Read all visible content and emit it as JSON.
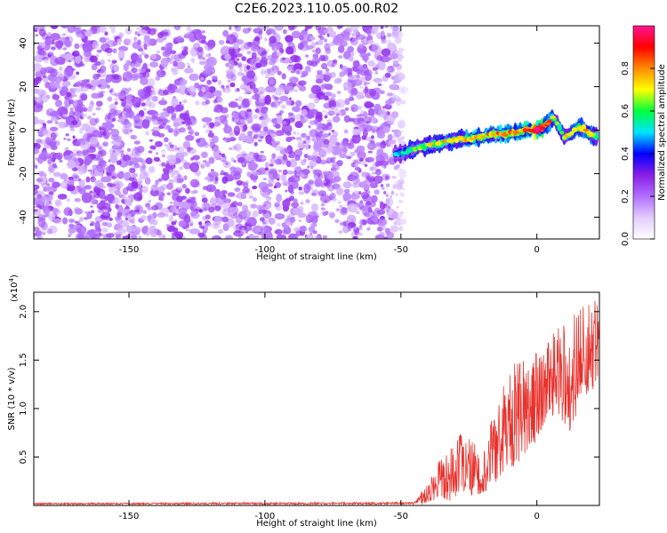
{
  "figure_title": "C2E6.2023.110.05.00.R02",
  "colors": {
    "snr_line": "#e8322d",
    "axis": "#000000",
    "colormap": [
      "#ffffff",
      "#e3ccff",
      "#b070ff",
      "#8a1de6",
      "#0000ff",
      "#00e5ff",
      "#00ff3c",
      "#ffff00",
      "#ff8c00",
      "#ff0000",
      "#ff1493"
    ]
  },
  "chart_data": [
    {
      "id": "spectrogram",
      "type": "heatmap",
      "title": "",
      "xlabel": "Height of straight line (km)",
      "ylabel": "Frequency (Hz)",
      "xlim": [
        -185,
        23
      ],
      "ylim": [
        -50,
        48
      ],
      "xticks": [
        -150,
        -100,
        -50,
        0
      ],
      "xtick_labels": [
        "-150",
        "-100",
        "-50",
        "0"
      ],
      "yticks": [
        -40,
        -20,
        0,
        20,
        40
      ],
      "ytick_labels": [
        "-40",
        "-20",
        "0",
        "20",
        "40"
      ],
      "colorbar": {
        "label": "Normalized spectral amplitude",
        "range": [
          0,
          1
        ],
        "ticks": [
          0.0,
          0.2,
          0.4,
          0.6,
          0.8
        ],
        "tick_labels": [
          "0.0",
          "0.2",
          "0.4",
          "0.6",
          "0.8"
        ]
      },
      "noise_region_x": [
        -185,
        -49
      ],
      "noise_level": 0.15,
      "signal_ridge": {
        "x": [
          -52,
          -48,
          -44,
          -40,
          -36,
          -32,
          -28,
          -24,
          -20,
          -16,
          -12,
          -8,
          -4,
          0,
          2,
          4,
          6,
          8,
          10,
          12,
          14,
          16,
          18,
          20,
          22
        ],
        "y": [
          -11,
          -10,
          -8,
          -7,
          -6,
          -5,
          -4,
          -4,
          -3,
          -2,
          -2,
          -1,
          0,
          0,
          1,
          3,
          6,
          2,
          -3,
          -2,
          0,
          1,
          0,
          -2,
          -3
        ],
        "peak_amplitude": [
          0.4,
          0.5,
          0.55,
          0.55,
          0.6,
          0.6,
          0.6,
          0.65,
          0.65,
          0.65,
          0.7,
          0.7,
          0.75,
          0.9,
          0.8,
          0.7,
          0.6,
          0.5,
          0.55,
          0.6,
          0.6,
          0.6,
          0.7,
          0.6,
          0.5
        ]
      }
    },
    {
      "id": "snr",
      "type": "line",
      "title": "",
      "xlabel": "Height of straight line (km)",
      "ylabel": "SNR (10 * v/v)",
      "y_multiplier_label": "(x10",
      "y_multiplier_exp": "4",
      "y_multiplier_close": ")",
      "xlim": [
        -185,
        23
      ],
      "ylim": [
        0,
        2.2
      ],
      "xticks": [
        -150,
        -100,
        -50,
        0
      ],
      "xtick_labels": [
        "-150",
        "-100",
        "-50",
        "0"
      ],
      "yticks": [
        0.5,
        1.0,
        1.5,
        2.0
      ],
      "ytick_labels": [
        "0.5",
        "1.0",
        "1.5",
        "2.0"
      ],
      "series": [
        {
          "envelope_x": [
            -185,
            -45,
            -40,
            -36,
            -32,
            -28,
            -24,
            -20,
            -16,
            -12,
            -8,
            -4,
            0,
            4,
            8,
            12,
            16,
            20,
            23
          ],
          "envelope_low": [
            0.0,
            0.0,
            0.02,
            0.08,
            0.05,
            0.08,
            0.08,
            0.12,
            0.2,
            0.35,
            0.4,
            0.55,
            0.65,
            0.95,
            0.9,
            0.75,
            1.05,
            1.15,
            1.3
          ],
          "envelope_high": [
            0.02,
            0.03,
            0.25,
            0.5,
            0.65,
            0.75,
            0.7,
            0.55,
            0.95,
            1.3,
            1.5,
            1.5,
            1.6,
            1.7,
            1.85,
            1.95,
            2.05,
            2.1,
            2.18
          ]
        }
      ]
    }
  ]
}
